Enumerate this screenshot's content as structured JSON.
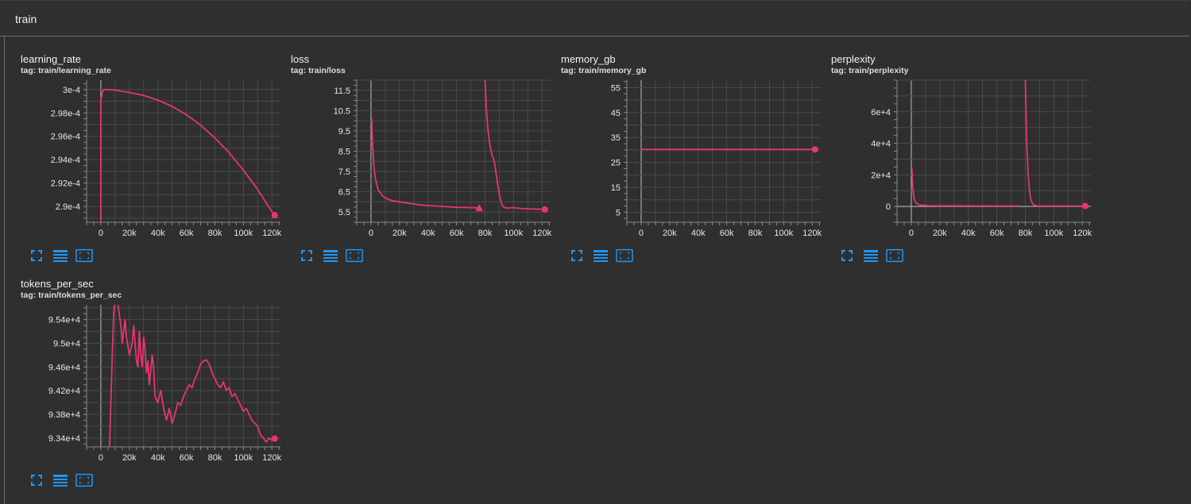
{
  "section": {
    "title": "train"
  },
  "accent_color": "#e8356e",
  "toolbar_icons": [
    "fullscreen-icon",
    "data-table-icon",
    "fit-domain-icon"
  ],
  "chart_data": [
    {
      "id": "learning_rate",
      "type": "line",
      "title": "learning_rate",
      "tag": "tag: train/learning_rate",
      "xlim": [
        -10000,
        126000
      ],
      "ylim": [
        0.00028865,
        0.0003008
      ],
      "xticks": [
        0,
        20000,
        40000,
        60000,
        80000,
        100000,
        120000
      ],
      "xtick_labels": [
        "0",
        "20k",
        "40k",
        "60k",
        "80k",
        "100k",
        "120k"
      ],
      "yticks": [
        0.00029,
        0.000292,
        0.000294,
        0.000296,
        0.000298,
        0.0003
      ],
      "ytick_labels": [
        "2.9e-4",
        "2.92e-4",
        "2.94e-4",
        "2.96e-4",
        "2.98e-4",
        "3e-4"
      ],
      "grid": true,
      "marker": "circle",
      "x": [
        0,
        0,
        1000,
        2000,
        5000,
        10000,
        20000,
        30000,
        40000,
        50000,
        60000,
        70000,
        80000,
        90000,
        100000,
        110000,
        120000,
        122000
      ],
      "y": [
        0.000288,
        0.000299,
        0.00029975,
        0.0003,
        0.0003,
        0.00029995,
        0.00029975,
        0.0002995,
        0.0002991,
        0.00029855,
        0.00029785,
        0.00029695,
        0.00029585,
        0.0002946,
        0.0002931,
        0.00029145,
        0.00028955,
        0.00028925
      ]
    },
    {
      "id": "loss",
      "type": "line",
      "title": "loss",
      "tag": "tag: train/loss",
      "xlim": [
        -10000,
        126000
      ],
      "ylim": [
        5.0,
        12.0
      ],
      "xticks": [
        0,
        20000,
        40000,
        60000,
        80000,
        100000,
        120000
      ],
      "xtick_labels": [
        "0",
        "20k",
        "40k",
        "60k",
        "80k",
        "100k",
        "120k"
      ],
      "yticks": [
        5.5,
        6.5,
        7.5,
        8.5,
        9.5,
        10.5,
        11.5
      ],
      "ytick_labels": [
        "5.5",
        "6.5",
        "7.5",
        "8.5",
        "9.5",
        "10.5",
        "11.5"
      ],
      "grid": true,
      "series": [
        {
          "marker": "triangle",
          "x": [
            500,
            1000,
            2000,
            3000,
            4000,
            5000,
            6000,
            8000,
            10000,
            13000,
            16000,
            20000,
            25000,
            30000,
            35000,
            40000,
            45000,
            50000,
            55000,
            60000,
            65000,
            70000,
            75000,
            76000
          ],
          "y": [
            10.1,
            9.0,
            7.8,
            7.2,
            6.9,
            6.6,
            6.5,
            6.3,
            6.2,
            6.1,
            6.05,
            6.0,
            5.95,
            5.9,
            5.85,
            5.82,
            5.8,
            5.78,
            5.76,
            5.74,
            5.73,
            5.72,
            5.71,
            5.7
          ]
        },
        {
          "marker": "circle",
          "x": [
            80000,
            81000,
            82000,
            83000,
            84000,
            85000,
            86000,
            87000,
            88000,
            89000,
            90000,
            91000,
            92000,
            93000,
            95000,
            100000,
            105000,
            110000,
            115000,
            120000,
            122000
          ],
          "y": [
            12.0,
            10.5,
            9.6,
            9.0,
            8.6,
            8.3,
            8.1,
            7.8,
            7.3,
            6.8,
            6.4,
            6.1,
            5.85,
            5.75,
            5.7,
            5.72,
            5.68,
            5.66,
            5.65,
            5.64,
            5.63
          ]
        }
      ]
    },
    {
      "id": "memory_gb",
      "type": "line",
      "title": "memory_gb",
      "tag": "tag: train/memory_gb",
      "xlim": [
        -10000,
        126000
      ],
      "ylim": [
        1.0,
        58.0
      ],
      "xticks": [
        0,
        20000,
        40000,
        60000,
        80000,
        100000,
        120000
      ],
      "xtick_labels": [
        "0",
        "20k",
        "40k",
        "60k",
        "80k",
        "100k",
        "120k"
      ],
      "yticks": [
        5,
        15,
        25,
        35,
        45,
        55
      ],
      "ytick_labels": [
        "5",
        "15",
        "25",
        "35",
        "45",
        "55"
      ],
      "grid": true,
      "marker": "circle",
      "x": [
        0,
        122000
      ],
      "y": [
        30.2,
        30.2
      ]
    },
    {
      "id": "perplexity",
      "type": "line",
      "title": "perplexity",
      "tag": "tag: train/perplexity",
      "xlim": [
        -10000,
        126000
      ],
      "ylim": [
        -10000,
        80000
      ],
      "xticks": [
        0,
        20000,
        40000,
        60000,
        80000,
        100000,
        120000
      ],
      "xtick_labels": [
        "0",
        "20k",
        "40k",
        "60k",
        "80k",
        "100k",
        "120k"
      ],
      "yticks": [
        0,
        20000,
        40000,
        60000
      ],
      "ytick_labels": [
        "0",
        "2e+4",
        "4e+4",
        "6e+4"
      ],
      "grid": true,
      "series": [
        {
          "marker": "none",
          "x": [
            500,
            1000,
            2000,
            3000,
            5000,
            8000,
            12000,
            20000,
            40000,
            60000,
            76000
          ],
          "y": [
            24000,
            12000,
            5000,
            2500,
            1200,
            700,
            500,
            400,
            350,
            330,
            320
          ]
        },
        {
          "marker": "circle",
          "x": [
            80000,
            80500,
            81000,
            82000,
            83000,
            84000,
            85000,
            86000,
            88000,
            92000,
            100000,
            110000,
            122000
          ],
          "y": [
            80000,
            60000,
            40000,
            20000,
            9000,
            4000,
            2000,
            900,
            400,
            300,
            290,
            285,
            280
          ]
        }
      ]
    },
    {
      "id": "tokens_per_sec",
      "type": "line",
      "title": "tokens_per_sec",
      "tag": "tag: train/tokens_per_sec",
      "xlim": [
        -10000,
        126000
      ],
      "ylim": [
        93250,
        95650
      ],
      "xticks": [
        0,
        20000,
        40000,
        60000,
        80000,
        100000,
        120000
      ],
      "xtick_labels": [
        "0",
        "20k",
        "40k",
        "60k",
        "80k",
        "100k",
        "120k"
      ],
      "yticks": [
        93400,
        93800,
        94200,
        94600,
        95000,
        95400
      ],
      "ytick_labels": [
        "9.34e+4",
        "9.38e+4",
        "9.42e+4",
        "9.46e+4",
        "9.5e+4",
        "9.54e+4"
      ],
      "grid": true,
      "marker": "circle",
      "x": [
        6000,
        7000,
        8000,
        9000,
        10000,
        12000,
        14000,
        15000,
        16000,
        17000,
        18000,
        20000,
        22000,
        23000,
        24000,
        25000,
        26000,
        27000,
        28000,
        29000,
        30000,
        31000,
        32000,
        33000,
        34000,
        36000,
        37000,
        38000,
        40000,
        42000,
        44000,
        46000,
        48000,
        50000,
        52000,
        54000,
        56000,
        58000,
        60000,
        62000,
        64000,
        66000,
        68000,
        70000,
        72000,
        74000,
        76000,
        78000,
        80000,
        82000,
        84000,
        86000,
        88000,
        90000,
        92000,
        94000,
        96000,
        98000,
        100000,
        102000,
        104000,
        106000,
        108000,
        110000,
        112000,
        114000,
        116000,
        118000,
        120000,
        122000
      ],
      "y": [
        93150,
        94000,
        94800,
        95500,
        95800,
        95650,
        95300,
        95000,
        95200,
        95400,
        95100,
        94800,
        95000,
        95300,
        95000,
        94700,
        94600,
        95200,
        94800,
        94600,
        95100,
        94900,
        94500,
        94700,
        94300,
        94800,
        94600,
        94100,
        94000,
        94200,
        93900,
        93700,
        93900,
        93650,
        93800,
        94000,
        93950,
        94100,
        94200,
        94300,
        94250,
        94400,
        94500,
        94650,
        94700,
        94720,
        94650,
        94500,
        94400,
        94300,
        94250,
        94350,
        94200,
        94250,
        94100,
        94150,
        94050,
        93950,
        93850,
        93900,
        93800,
        93700,
        93650,
        93600,
        93450,
        93400,
        93330,
        93400,
        93360,
        93390
      ]
    }
  ]
}
